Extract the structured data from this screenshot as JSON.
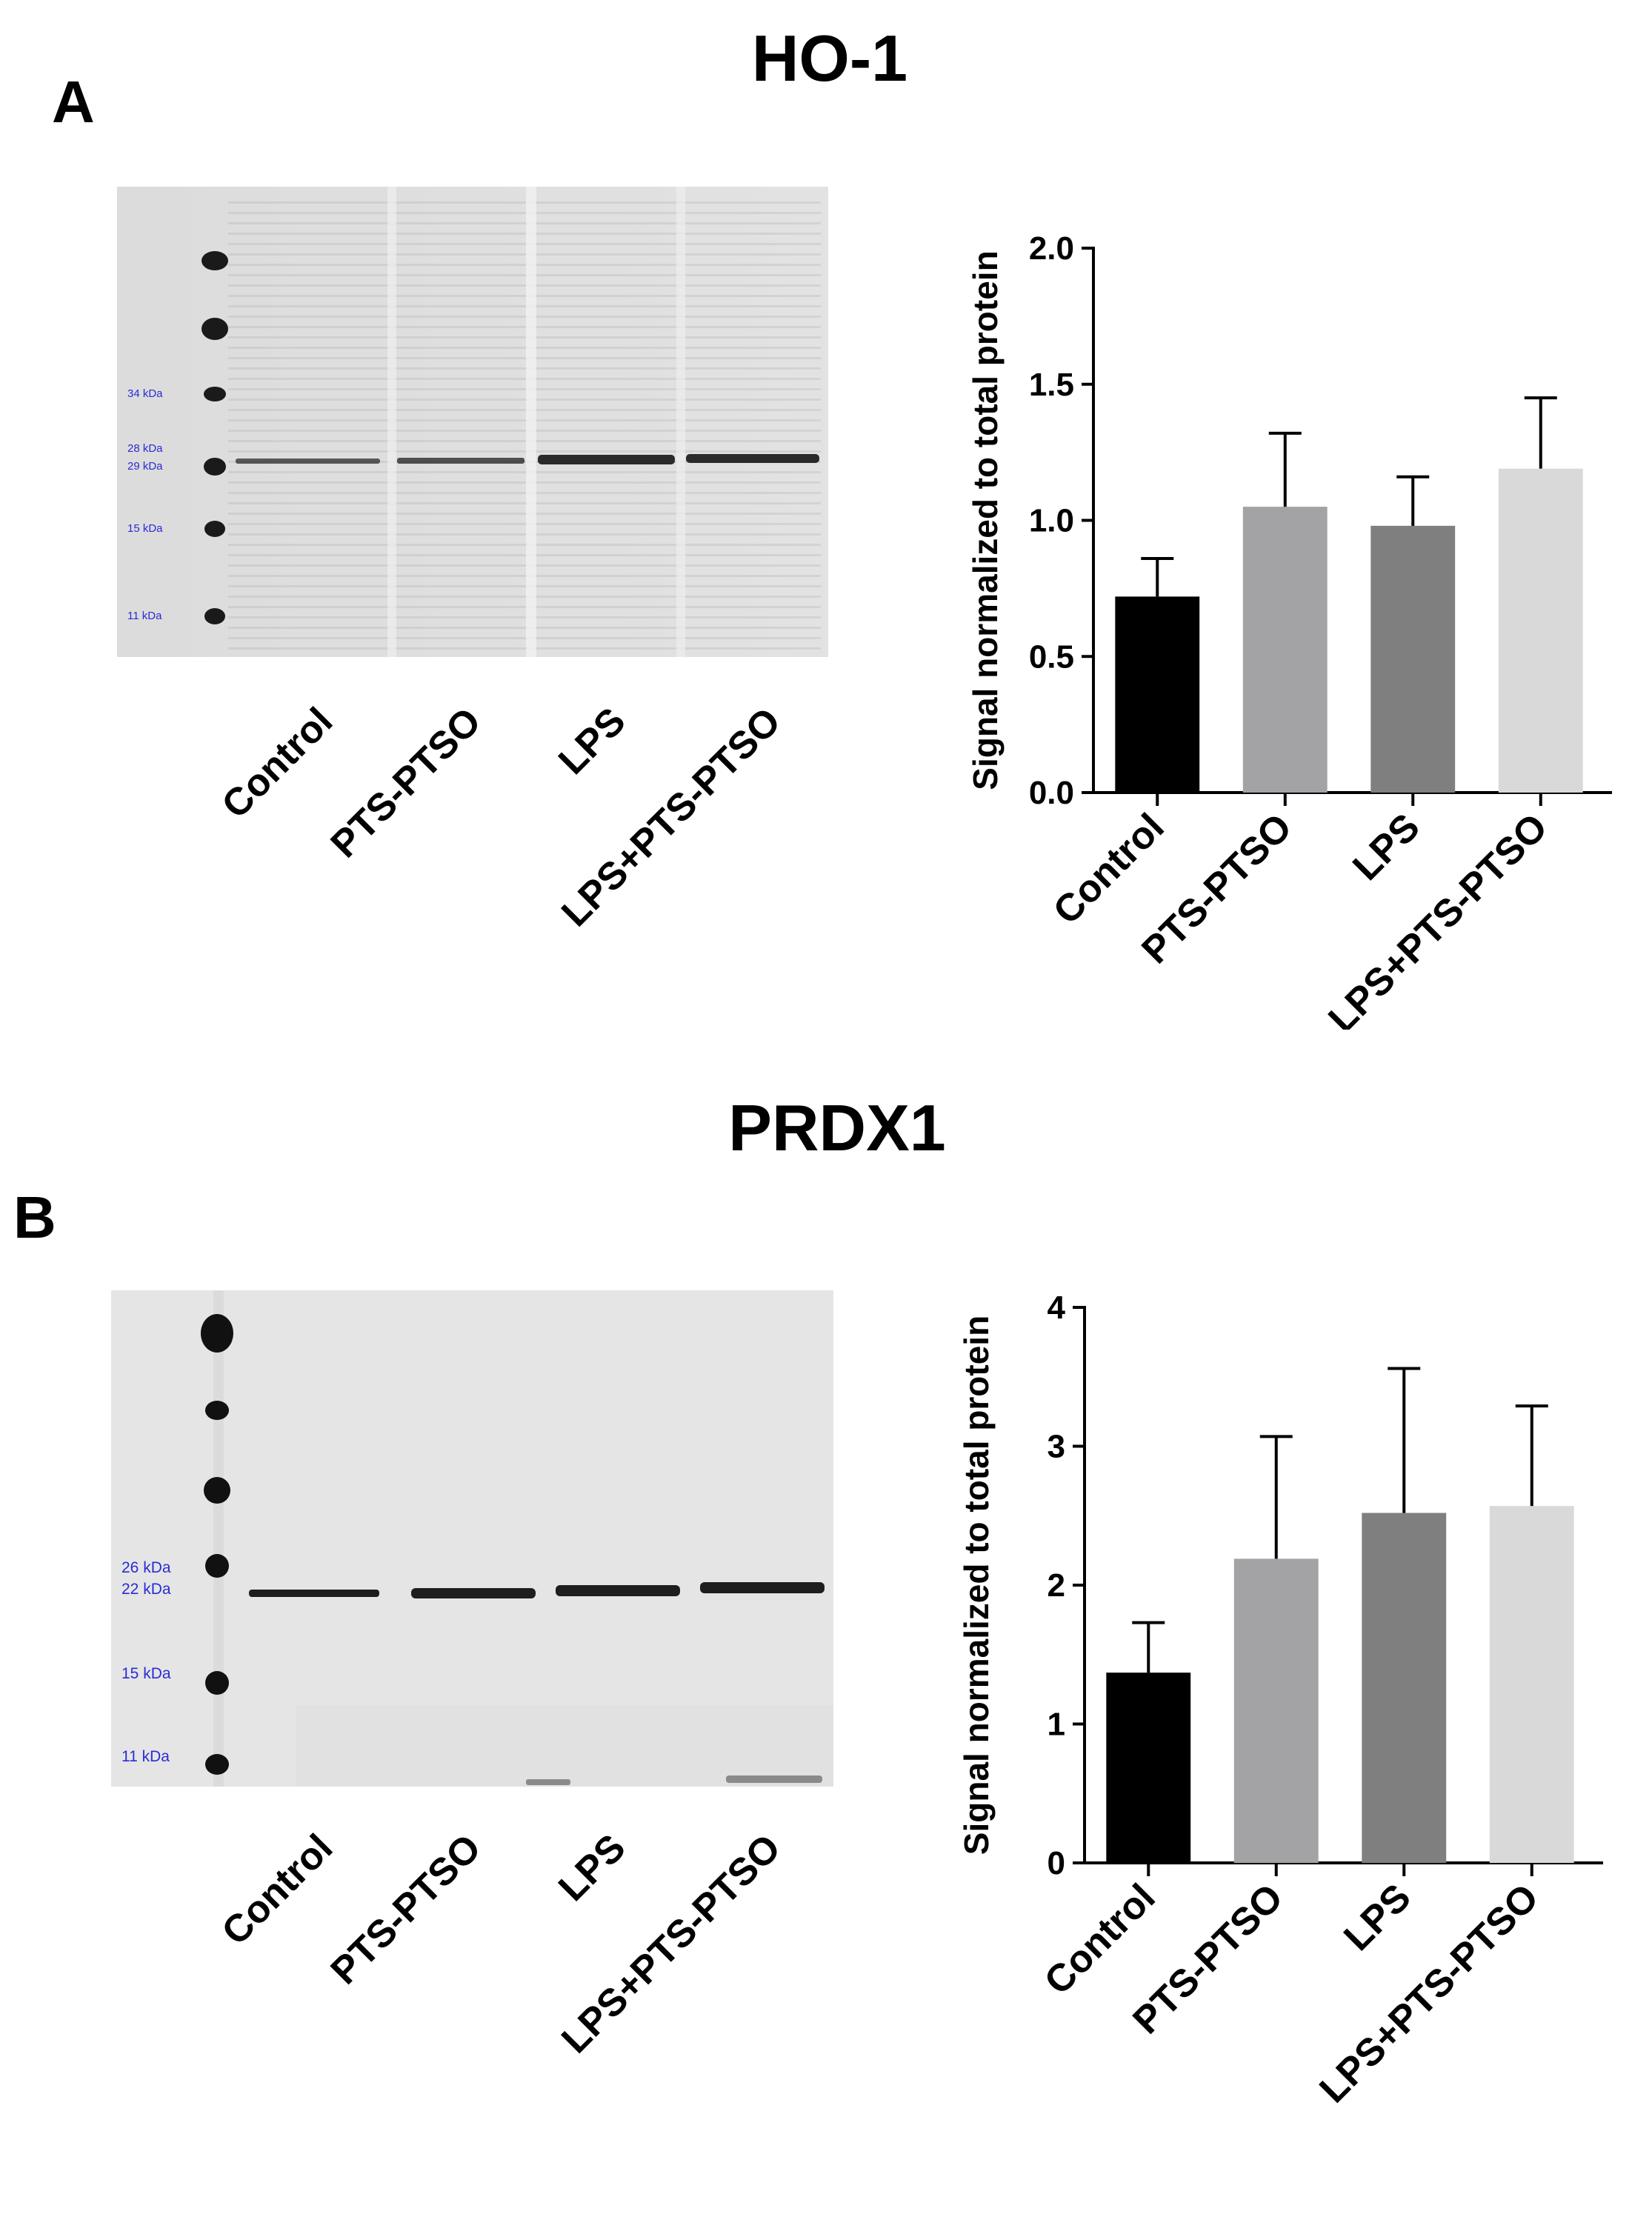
{
  "panels": [
    {
      "letter": "A",
      "title": "HO-1",
      "blot": {
        "markers": [
          "34 kDa",
          "28 kDa",
          "29 kDa",
          "15 kDa",
          "11 kDa"
        ],
        "lanes": [
          "Control",
          "PTS-PTSO",
          "LPS",
          "LPS+PTS-PTSO"
        ]
      }
    },
    {
      "letter": "B",
      "title": "PRDX1",
      "blot": {
        "markers": [
          "26 kDa",
          "22 kDa",
          "15 kDa",
          "11 kDa"
        ],
        "lanes": [
          "Control",
          "PTS-PTSO",
          "LPS",
          "LPS+PTS-PTSO"
        ]
      }
    }
  ],
  "chart_data": [
    {
      "type": "bar",
      "title": "",
      "xlabel": "",
      "ylabel": "Signal normalized to total protein",
      "categories": [
        "Control",
        "PTS-PTSO",
        "LPS",
        "LPS+PTS-PTSO"
      ],
      "values": [
        0.72,
        1.05,
        0.98,
        1.19
      ],
      "error_upper": [
        0.14,
        0.27,
        0.18,
        0.26
      ],
      "colors": [
        "#000000",
        "#a3a3a6",
        "#7f7f7f",
        "#d9d9d9"
      ],
      "ylim": [
        0,
        2.0
      ],
      "yticks": [
        "0.0",
        "0.5",
        "1.0",
        "1.5",
        "2.0"
      ],
      "grid": false
    },
    {
      "type": "bar",
      "title": "",
      "xlabel": "",
      "ylabel": "Signal normalized to total protein",
      "categories": [
        "Control",
        "PTS-PTSO",
        "LPS",
        "LPS+PTS-PTSO"
      ],
      "values": [
        1.37,
        2.19,
        2.52,
        2.57
      ],
      "error_upper": [
        0.36,
        0.88,
        1.04,
        0.72
      ],
      "colors": [
        "#000000",
        "#a3a3a6",
        "#7f7f7f",
        "#d9d9d9"
      ],
      "ylim": [
        0,
        4
      ],
      "yticks": [
        "0",
        "1",
        "2",
        "3",
        "4"
      ],
      "grid": false
    }
  ]
}
